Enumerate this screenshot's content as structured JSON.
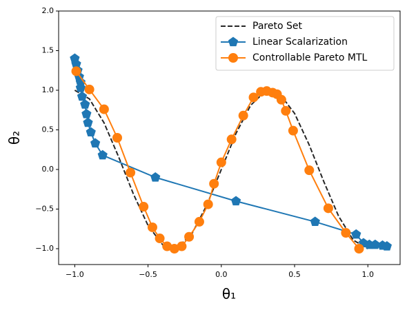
{
  "chart_data": {
    "type": "line",
    "xlabel": "θ₁",
    "ylabel": "θ₂",
    "xlim": [
      -1.11,
      1.22
    ],
    "ylim": [
      -1.2,
      2.0
    ],
    "xticks": [
      {
        "value": -1,
        "label": "−1.0"
      },
      {
        "value": -0.5,
        "label": "−0.5"
      },
      {
        "value": 0,
        "label": "0.0"
      },
      {
        "value": 0.5,
        "label": "0.5"
      },
      {
        "value": 1,
        "label": "1.0"
      }
    ],
    "yticks": [
      {
        "value": -1,
        "label": "−1.0"
      },
      {
        "value": -0.5,
        "label": "−0.5"
      },
      {
        "value": 0,
        "label": "0.0"
      },
      {
        "value": 0.5,
        "label": "0.5"
      },
      {
        "value": 1,
        "label": "1.0"
      },
      {
        "value": 1.5,
        "label": "1.5"
      },
      {
        "value": 2,
        "label": "2.0"
      }
    ],
    "legend": "upper right",
    "series": [
      {
        "name": "Pareto Set",
        "color": "#262626",
        "dash": true,
        "marker": "none",
        "x": [
          -1,
          -0.9,
          -0.8,
          -0.7,
          -0.6,
          -0.5,
          -0.4,
          -0.3,
          -0.2,
          -0.1,
          0,
          0.1,
          0.2,
          0.3,
          0.4,
          0.5,
          0.6,
          0.7,
          0.8,
          0.9,
          1.0
        ],
        "values": [
          1,
          0.891,
          0.588,
          0.156,
          -0.309,
          -0.707,
          -0.951,
          -0.988,
          -0.809,
          -0.454,
          0,
          0.454,
          0.809,
          0.988,
          0.951,
          0.707,
          0.309,
          -0.156,
          -0.588,
          -0.891,
          -1
        ]
      },
      {
        "name": "Linear Scalarization",
        "color": "#1f77b4",
        "dash": false,
        "marker": "pentagon",
        "x": [
          -1.0,
          -0.99,
          -0.98,
          -0.97,
          -0.96,
          -0.96,
          -0.95,
          -0.93,
          -0.92,
          -0.91,
          -0.89,
          -0.86,
          -0.81,
          -0.45,
          0.1,
          0.64,
          0.92,
          0.97,
          1.01,
          1.05,
          1.1,
          1.13
        ],
        "values": [
          1.4,
          1.33,
          1.25,
          1.17,
          1.1,
          1.03,
          0.92,
          0.82,
          0.7,
          0.59,
          0.47,
          0.33,
          0.18,
          -0.1,
          -0.4,
          -0.66,
          -0.82,
          -0.93,
          -0.95,
          -0.95,
          -0.96,
          -0.97
        ]
      },
      {
        "name": "Controllable Pareto MTL",
        "color": "#ff7f0e",
        "dash": false,
        "marker": "circle",
        "x": [
          -0.99,
          -0.9,
          -0.8,
          -0.71,
          -0.62,
          -0.53,
          -0.47,
          -0.42,
          -0.37,
          -0.32,
          -0.27,
          -0.22,
          -0.15,
          -0.09,
          -0.05,
          0.0,
          0.07,
          0.15,
          0.22,
          0.27,
          0.31,
          0.35,
          0.38,
          0.41,
          0.44,
          0.49,
          0.6,
          0.73,
          0.85,
          0.94
        ],
        "values": [
          1.24,
          1.01,
          0.76,
          0.4,
          -0.04,
          -0.47,
          -0.73,
          -0.87,
          -0.97,
          -1.0,
          -0.97,
          -0.85,
          -0.66,
          -0.44,
          -0.18,
          0.09,
          0.38,
          0.68,
          0.91,
          0.98,
          0.99,
          0.97,
          0.95,
          0.88,
          0.74,
          0.49,
          -0.01,
          -0.49,
          -0.8,
          -1.0
        ]
      }
    ]
  }
}
